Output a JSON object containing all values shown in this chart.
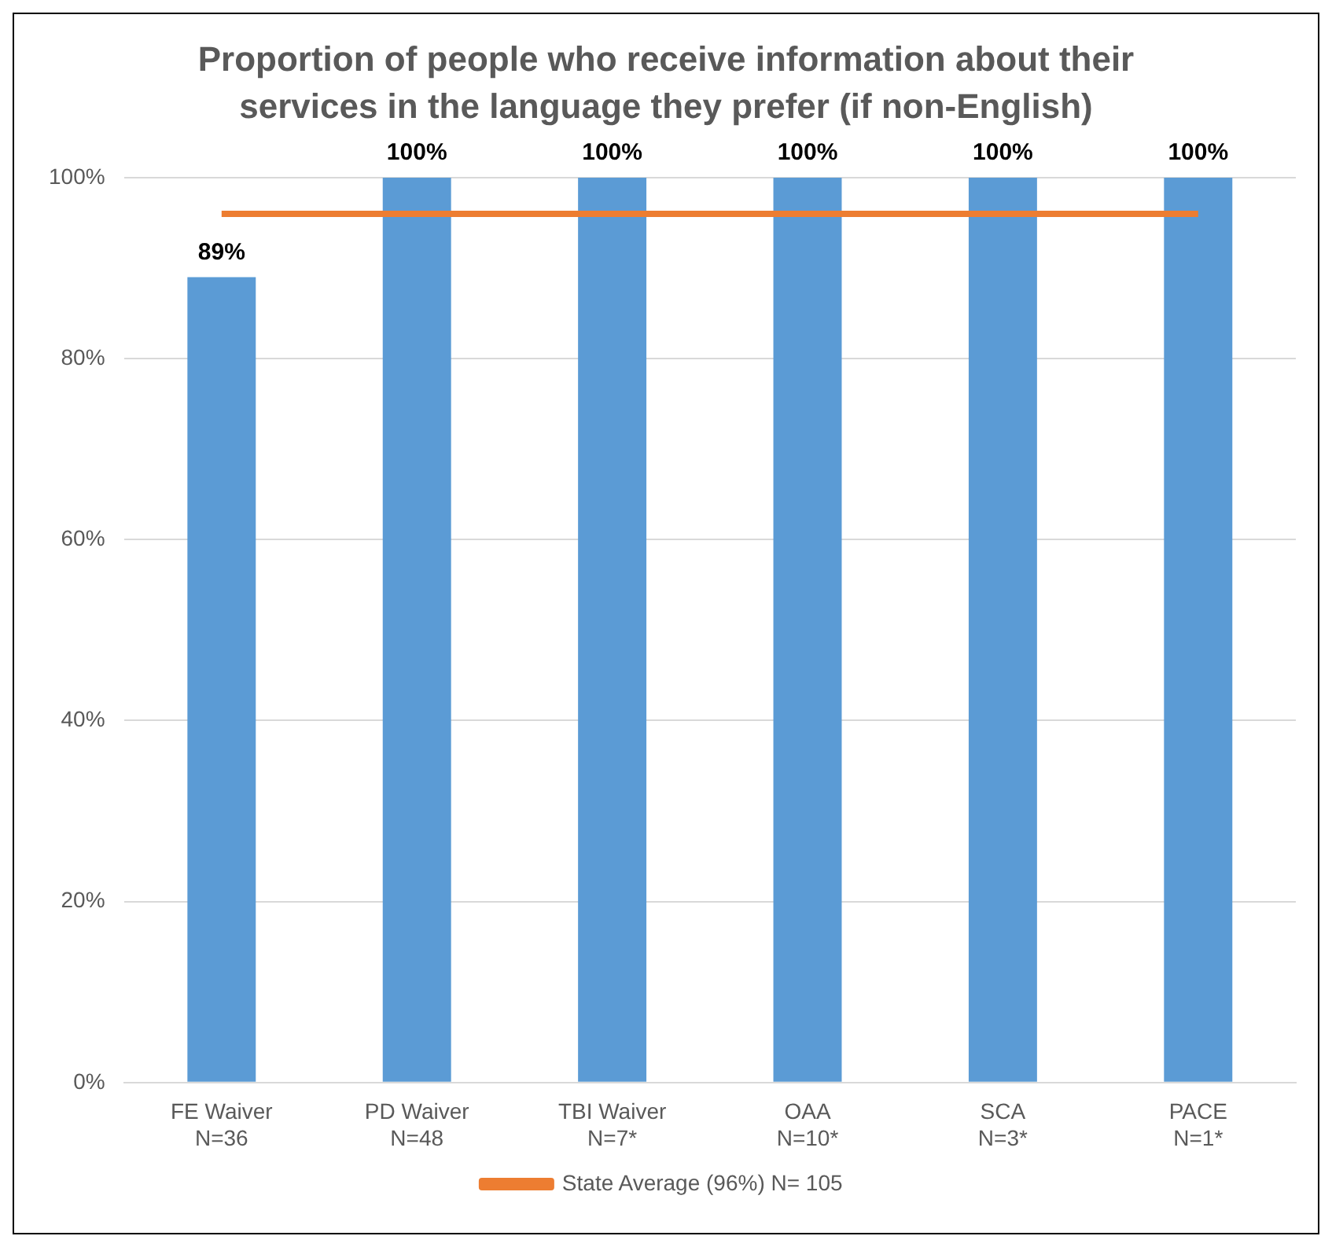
{
  "chart_data": {
    "type": "bar",
    "title": "Proportion of people who receive information about their services in the language they prefer (if non-English)",
    "categories": [
      "FE Waiver\nN=36",
      "PD Waiver\nN=48",
      "TBI Waiver\nN=7*",
      "OAA\nN=10*",
      "SCA\nN=3*",
      "PACE\nN=1*"
    ],
    "series": [
      {
        "color": "#5b9bd5",
        "values": [
          89,
          100,
          100,
          100,
          100,
          100
        ],
        "value_labels": [
          "89%",
          "100%",
          "100%",
          "100%",
          "100%",
          "100%"
        ]
      },
      {
        "type": "line",
        "name": "State Average (96%) N= 105",
        "color": "#ed7d31",
        "values": [
          96,
          96,
          96,
          96,
          96,
          96
        ],
        "marker": "none"
      }
    ],
    "ylim": [
      0,
      100
    ],
    "yticks": [
      {
        "value": 0,
        "label": "0%"
      },
      {
        "value": 20,
        "label": "20%"
      },
      {
        "value": 40,
        "label": "40%"
      },
      {
        "value": 60,
        "label": "60%"
      },
      {
        "value": 80,
        "label": "80%"
      },
      {
        "value": 100,
        "label": "100%"
      }
    ],
    "grid": "y",
    "legend": "bottom"
  }
}
